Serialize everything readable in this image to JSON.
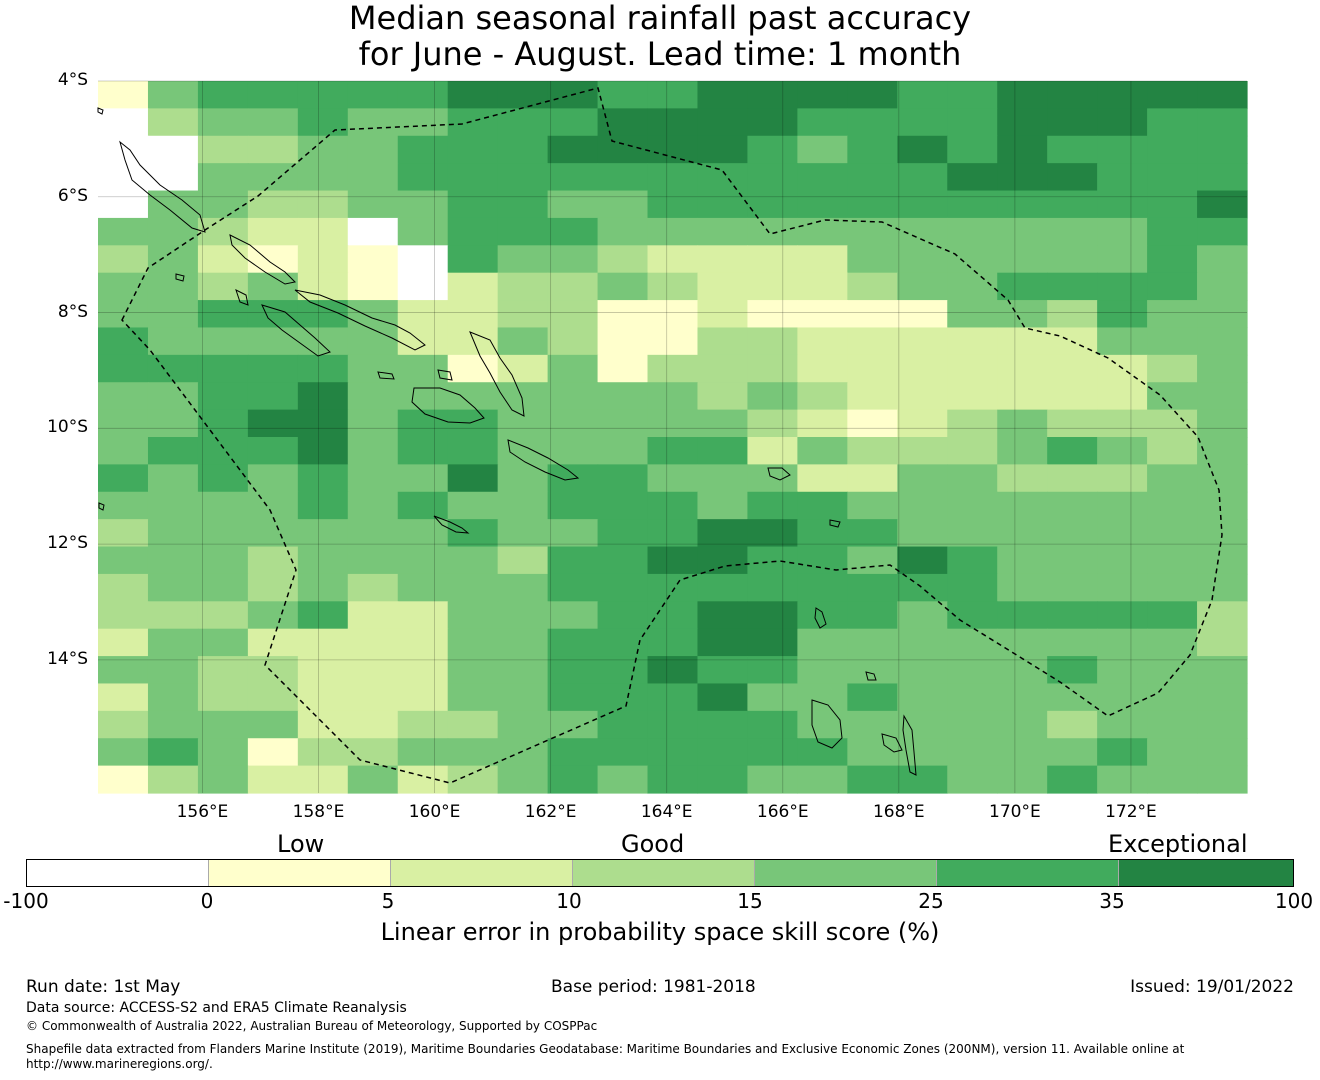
{
  "title": {
    "line1": "Median seasonal rainfall past accuracy",
    "line2": "for June - August. Lead time: 1 month"
  },
  "map": {
    "lon_labels": [
      "156°E",
      "158°E",
      "160°E",
      "162°E",
      "164°E",
      "166°E",
      "168°E",
      "170°E",
      "172°E"
    ],
    "lat_labels": [
      "4°S",
      "6°S",
      "8°S",
      "10°S",
      "12°S",
      "14°S"
    ],
    "lon_range": [
      154.2,
      174
    ],
    "lat_range": [
      -16.3,
      -4
    ],
    "cell_size_deg": 0.83,
    "grid": true,
    "boundary": "dashed EEZ line"
  },
  "legend": {
    "categories": [
      "Low",
      "Good",
      "Exceptional"
    ],
    "bounds": [
      "-100",
      "0",
      "5",
      "10",
      "15",
      "25",
      "35",
      "100"
    ],
    "colors": [
      "#ffffff",
      "#ffffcc",
      "#d9f0a3",
      "#addd8e",
      "#78c679",
      "#41ab5d",
      "#238443"
    ],
    "caption": "Linear error in probability space skill score (%)"
  },
  "chart_data": {
    "type": "heatmap",
    "title": "Median seasonal rainfall past accuracy for June - August. Lead time: 1 month",
    "color_scale": "LEPS skill score class (0=-100..0, 1=0..5, 2=5..10, 3=10..15, 4=15..25, 5=25..35, 6=35..100)",
    "lon_start": 154.2,
    "lat_start": -4,
    "dlon": 0.83,
    "dlat": -0.55,
    "rows": [
      "14555556665566665566666",
      "03445445556666555566655",
      "00334455566665456565555",
      "00444455555555555666555",
      "04433445544555555555556",
      "44322045554444444444455",
      "34212105443222244444454",
      "44342102334322234455554",
      "44555422331121111443544",
      "54444422431133222222444",
      "55555441241333222222234",
      "44556444444434322222244",
      "44566455444443212343334",
      "45556455444552433345434",
      "54545446455444224433344",
      "44445454455545544444444",
      "34444445445566554444444",
      "44434444355665546544444",
      "34434344455555555544444",
      "33345224445566554555553",
      "24422224455566444444443",
      "44332224455655444445444",
      "24332224455564454444444",
      "34442233445555444443444",
      "45413344455555544444544",
      "13422423454554455445444"
    ]
  },
  "footer": {
    "run_date": "Run date: 1st May",
    "base_period": "Base period: 1981-2018",
    "issued": "Issued: 19/01/2022",
    "data_source": "Data source: ACCESS-S2 and ERA5 Climate Reanalysis",
    "copyright": "© Commonwealth of Australia 2022, Australian Bureau of Meteorology, Supported by COSPPac",
    "shapefile_line1": "Shapefile data extracted from Flanders Marine Institute (2019), Maritime Boundaries Geodatabase: Maritime Boundaries and Exclusive Economic Zones (200NM), version 11. Available online at",
    "shapefile_line2": "http://www.marineregions.org/."
  }
}
